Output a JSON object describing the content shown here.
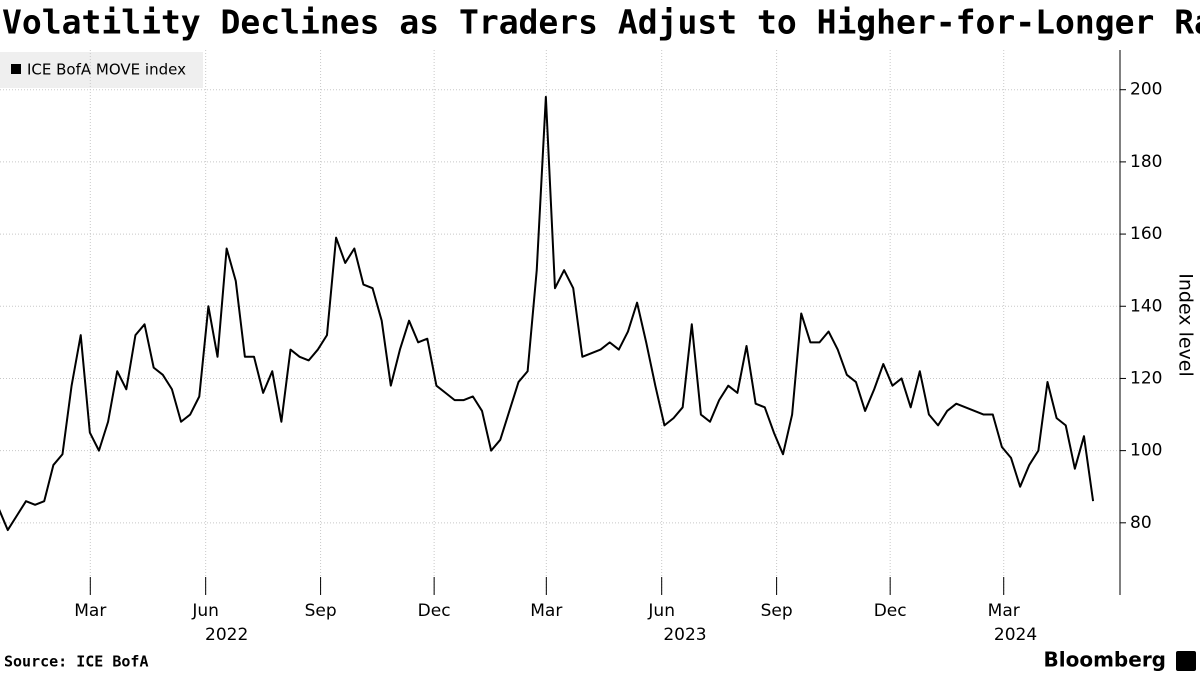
{
  "chart_data": {
    "type": "line",
    "title": "Volatility Declines as Traders Adjust to Higher-for-Longer Rates",
    "y_label": "Index level",
    "source": "Source: ICE BofA",
    "brand": "Bloomberg",
    "legend": "top-left",
    "grid": true,
    "xlim": [
      2021.963,
      2024.419
    ],
    "ylim": [
      60,
      211
    ],
    "yticks": [
      80,
      100,
      120,
      140,
      160,
      180,
      200
    ],
    "xticks": [
      {
        "value": 2022.161,
        "label": "Mar"
      },
      {
        "value": 2022.414,
        "label": "Jun"
      },
      {
        "value": 2022.666,
        "label": "Sep"
      },
      {
        "value": 2022.915,
        "label": "Dec"
      },
      {
        "value": 2023.161,
        "label": "Mar"
      },
      {
        "value": 2023.414,
        "label": "Jun"
      },
      {
        "value": 2023.666,
        "label": "Sep"
      },
      {
        "value": 2023.915,
        "label": "Dec"
      },
      {
        "value": 2024.164,
        "label": "Mar"
      }
    ],
    "xyears": [
      {
        "value": 2022.46,
        "label": "2022"
      },
      {
        "value": 2023.465,
        "label": "2023"
      },
      {
        "value": 2024.19,
        "label": "2024"
      }
    ],
    "x": [
      2021.96,
      2021.98,
      2022.0,
      2022.02,
      2022.04,
      2022.06,
      2022.08,
      2022.1,
      2022.12,
      2022.14,
      2022.16,
      2022.18,
      2022.2,
      2022.22,
      2022.24,
      2022.26,
      2022.28,
      2022.3,
      2022.32,
      2022.34,
      2022.36,
      2022.38,
      2022.4,
      2022.42,
      2022.44,
      2022.46,
      2022.48,
      2022.5,
      2022.52,
      2022.54,
      2022.56,
      2022.58,
      2022.6,
      2022.62,
      2022.64,
      2022.66,
      2022.68,
      2022.7,
      2022.72,
      2022.74,
      2022.76,
      2022.78,
      2022.8,
      2022.82,
      2022.84,
      2022.86,
      2022.88,
      2022.9,
      2022.92,
      2022.94,
      2022.96,
      2022.98,
      2023.0,
      2023.02,
      2023.04,
      2023.06,
      2023.08,
      2023.1,
      2023.12,
      2023.14,
      2023.16,
      2023.18,
      2023.2,
      2023.22,
      2023.24,
      2023.26,
      2023.28,
      2023.3,
      2023.32,
      2023.34,
      2023.36,
      2023.38,
      2023.4,
      2023.42,
      2023.44,
      2023.46,
      2023.48,
      2023.5,
      2023.52,
      2023.54,
      2023.56,
      2023.58,
      2023.6,
      2023.62,
      2023.64,
      2023.66,
      2023.68,
      2023.7,
      2023.72,
      2023.74,
      2023.76,
      2023.78,
      2023.8,
      2023.82,
      2023.84,
      2023.86,
      2023.88,
      2023.9,
      2023.92,
      2023.94,
      2023.96,
      2023.98,
      2024.0,
      2024.02,
      2024.04,
      2024.06,
      2024.08,
      2024.1,
      2024.12,
      2024.14,
      2024.16,
      2024.18,
      2024.2,
      2024.22,
      2024.24,
      2024.26,
      2024.28,
      2024.3,
      2024.32,
      2024.34,
      2024.36
    ],
    "series": [
      {
        "name": "ICE BofA MOVE index",
        "color": "#000000",
        "values": [
          84,
          78,
          82,
          86,
          85,
          86,
          96,
          99,
          118,
          132,
          105,
          100,
          108,
          122,
          117,
          132,
          135,
          123,
          121,
          117,
          108,
          110,
          115,
          140,
          126,
          156,
          147,
          126,
          126,
          116,
          122,
          108,
          128,
          126,
          125,
          128,
          132,
          159,
          152,
          156,
          146,
          145,
          136,
          118,
          128,
          136,
          130,
          131,
          118,
          116,
          114,
          114,
          115,
          111,
          100,
          103,
          111,
          119,
          122,
          150,
          198,
          145,
          150,
          145,
          126,
          127,
          128,
          130,
          128,
          133,
          141,
          130,
          118,
          107,
          109,
          112,
          135,
          110,
          108,
          114,
          118,
          116,
          129,
          113,
          112,
          105,
          99,
          110,
          138,
          130,
          130,
          133,
          128,
          121,
          119,
          111,
          117,
          124,
          118,
          120,
          112,
          122,
          110,
          107,
          111,
          113,
          112,
          111,
          110,
          110,
          101,
          98,
          90,
          96,
          100,
          119,
          109,
          107,
          95,
          104,
          86
        ]
      }
    ]
  }
}
